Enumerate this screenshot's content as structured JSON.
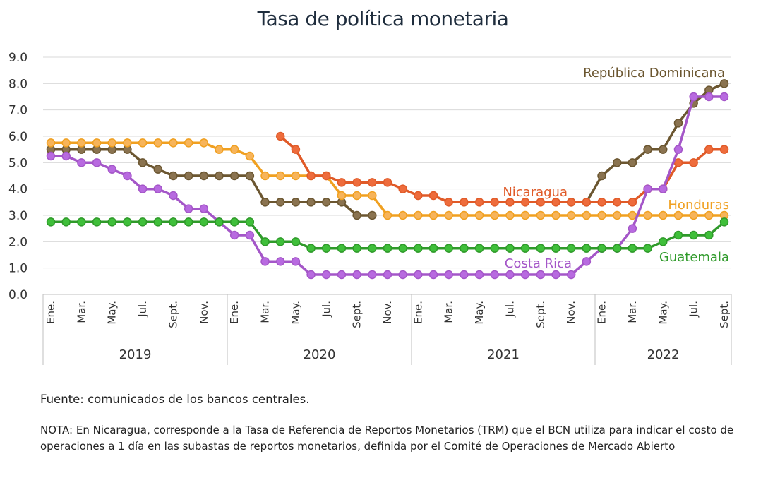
{
  "title": "Tasa de política monetaria",
  "source": "Fuente: comunicados de los bancos centrales.",
  "note": "NOTA: En Nicaragua, corresponde a la Tasa de Referencia de Reportos Monetarios (TRM) que el BCN utiliza para indicar el costo de operaciones a 1 día en las subastas de reportos monetarios, definida por el Comité de Operaciones de Mercado Abierto",
  "chart_data": {
    "type": "line",
    "title": "Tasa de política monetaria",
    "ylim": [
      0,
      9
    ],
    "yticks": [
      "0.0",
      "1.0",
      "2.0",
      "3.0",
      "4.0",
      "5.0",
      "6.0",
      "7.0",
      "8.0",
      "9.0"
    ],
    "grid": true,
    "month_labels": [
      "Ene.",
      "Mar.",
      "May.",
      "Jul.",
      "Sept.",
      "Nov."
    ],
    "month_labels_2022": [
      "Ene.",
      "Mar.",
      "May.",
      "Jul.",
      "Sept."
    ],
    "years": [
      "2019",
      "2020",
      "2021",
      "2022"
    ],
    "x": [
      "2019-01",
      "2019-02",
      "2019-03",
      "2019-04",
      "2019-05",
      "2019-06",
      "2019-07",
      "2019-08",
      "2019-09",
      "2019-10",
      "2019-11",
      "2019-12",
      "2020-01",
      "2020-02",
      "2020-03",
      "2020-04",
      "2020-05",
      "2020-06",
      "2020-07",
      "2020-08",
      "2020-09",
      "2020-10",
      "2020-11",
      "2020-12",
      "2021-01",
      "2021-02",
      "2021-03",
      "2021-04",
      "2021-05",
      "2021-06",
      "2021-07",
      "2021-08",
      "2021-09",
      "2021-10",
      "2021-11",
      "2021-12",
      "2022-01",
      "2022-02",
      "2022-03",
      "2022-04",
      "2022-05",
      "2022-06",
      "2022-07",
      "2022-08",
      "2022-09"
    ],
    "series": [
      {
        "name": "República Dominicana",
        "color": "#6b5630",
        "fill": "#8a7350",
        "label_color": "#6b5630",
        "values": [
          5.5,
          5.5,
          5.5,
          5.5,
          5.5,
          5.5,
          5.0,
          4.75,
          4.5,
          4.5,
          4.5,
          4.5,
          4.5,
          4.5,
          3.5,
          3.5,
          3.5,
          3.5,
          3.5,
          3.5,
          3.0,
          3.0,
          null,
          null,
          null,
          null,
          null,
          null,
          null,
          null,
          null,
          null,
          null,
          null,
          3.5,
          3.5,
          4.5,
          5.0,
          5.0,
          5.5,
          5.5,
          6.5,
          7.25,
          7.75,
          8.0
        ]
      },
      {
        "name": "Honduras",
        "color": "#f0a020",
        "fill": "#f7b45a",
        "label_color": "#f0a020",
        "values": [
          5.75,
          5.75,
          5.75,
          5.75,
          5.75,
          5.75,
          5.75,
          5.75,
          5.75,
          5.75,
          5.75,
          5.5,
          5.5,
          5.25,
          4.5,
          4.5,
          4.5,
          4.5,
          4.5,
          3.75,
          3.75,
          3.75,
          3.0,
          3.0,
          3.0,
          3.0,
          3.0,
          3.0,
          3.0,
          3.0,
          3.0,
          3.0,
          3.0,
          3.0,
          3.0,
          3.0,
          3.0,
          3.0,
          3.0,
          3.0,
          3.0,
          3.0,
          3.0,
          3.0,
          3.0
        ]
      },
      {
        "name": "Nicaragua",
        "color": "#e05a28",
        "fill": "#ee6c3c",
        "label_color": "#e05a28",
        "values": [
          null,
          null,
          null,
          null,
          null,
          null,
          null,
          null,
          null,
          null,
          null,
          null,
          null,
          null,
          null,
          6.0,
          5.5,
          4.5,
          4.5,
          4.25,
          4.25,
          4.25,
          4.25,
          4.0,
          3.75,
          3.75,
          3.5,
          3.5,
          3.5,
          3.5,
          3.5,
          3.5,
          3.5,
          3.5,
          3.5,
          3.5,
          3.5,
          3.5,
          3.5,
          4.0,
          4.0,
          5.0,
          5.0,
          5.5,
          5.5
        ]
      },
      {
        "name": "Costa Rica",
        "color": "#a456c8",
        "fill": "#b86ae0",
        "label_color": "#a456c8",
        "values": [
          5.25,
          5.25,
          5.0,
          5.0,
          4.75,
          4.5,
          4.0,
          4.0,
          3.75,
          3.25,
          3.25,
          2.75,
          2.25,
          2.25,
          1.25,
          1.25,
          1.25,
          0.75,
          0.75,
          0.75,
          0.75,
          0.75,
          0.75,
          0.75,
          0.75,
          0.75,
          0.75,
          0.75,
          0.75,
          0.75,
          0.75,
          0.75,
          0.75,
          0.75,
          0.75,
          1.25,
          1.75,
          1.75,
          2.5,
          4.0,
          4.0,
          5.5,
          7.5,
          7.5,
          7.5
        ]
      },
      {
        "name": "Guatemala",
        "color": "#2f9a2a",
        "fill": "#3fbf3a",
        "label_color": "#2f9a2a",
        "values": [
          2.75,
          2.75,
          2.75,
          2.75,
          2.75,
          2.75,
          2.75,
          2.75,
          2.75,
          2.75,
          2.75,
          2.75,
          2.75,
          2.75,
          2.0,
          2.0,
          2.0,
          1.75,
          1.75,
          1.75,
          1.75,
          1.75,
          1.75,
          1.75,
          1.75,
          1.75,
          1.75,
          1.75,
          1.75,
          1.75,
          1.75,
          1.75,
          1.75,
          1.75,
          1.75,
          1.75,
          1.75,
          1.75,
          1.75,
          1.75,
          2.0,
          2.25,
          2.25,
          2.25,
          2.75
        ]
      }
    ]
  }
}
